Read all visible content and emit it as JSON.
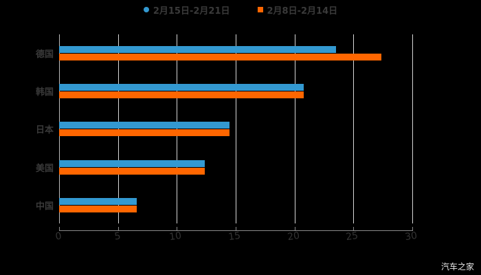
{
  "legend": {
    "series_a": {
      "label": "2月15日-2月21日",
      "color": "#3399d1"
    },
    "series_b": {
      "label": "2月8日-2月14日",
      "color": "#ff6600"
    }
  },
  "watermark": "汽车之家",
  "chart_data": {
    "type": "bar",
    "orientation": "horizontal",
    "title": "",
    "categories": [
      "德国",
      "韩国",
      "日本",
      "美国",
      "中国"
    ],
    "series": [
      {
        "name": "2月15日-2月21日",
        "color": "#3399d1",
        "values": [
          23.5,
          20.8,
          14.5,
          12.4,
          6.6
        ]
      },
      {
        "name": "2月8日-2月14日",
        "color": "#ff6600",
        "values": [
          27.4,
          20.8,
          14.5,
          12.4,
          6.6
        ]
      }
    ],
    "xlabel": "",
    "ylabel": "",
    "xlim": [
      0,
      30
    ],
    "xticks": [
      "0",
      "5",
      "10",
      "15",
      "20",
      "25",
      "30"
    ],
    "grid": true,
    "legend_position": "top"
  }
}
